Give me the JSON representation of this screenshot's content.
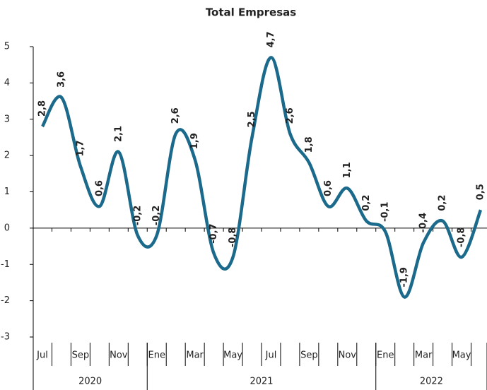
{
  "chart_data": {
    "type": "line",
    "title": "Total Empresas",
    "categories": [
      "Jul",
      null,
      "Sep",
      null,
      "Nov",
      null,
      "Ene",
      null,
      "Mar",
      null,
      "May",
      null,
      "Jul",
      null,
      "Sep",
      null,
      "Nov",
      null,
      "Ene",
      null,
      "Mar",
      null,
      "May",
      null
    ],
    "groups": [
      {
        "label": "2020",
        "span": 6
      },
      {
        "label": "2021",
        "span": 12
      },
      {
        "label": "2022",
        "span": 6
      }
    ],
    "values": [
      2.8,
      3.6,
      1.7,
      0.6,
      2.1,
      -0.2,
      -0.2,
      2.6,
      1.9,
      -0.7,
      -0.8,
      2.5,
      4.7,
      2.6,
      1.8,
      0.6,
      1.1,
      0.2,
      -0.1,
      -1.9,
      -0.4,
      0.2,
      -0.8,
      0.5
    ],
    "value_labels": [
      "2,8",
      "3,6",
      "1,7",
      "0,6",
      "2,1",
      "-0,2",
      "-0,2",
      "2,6",
      "1,9",
      "-0,7",
      "-0,8",
      "2,5",
      "4,7",
      "2,6",
      "1,8",
      "0,6",
      "1,1",
      "0,2",
      "-0,1",
      "-1,9",
      "-0,4",
      "0,2",
      "-0,8",
      "0,5"
    ],
    "color": "#1b6a8c",
    "ylim": [
      -3,
      5
    ],
    "yticks": [
      -3,
      -2,
      -1,
      0,
      1,
      2,
      3,
      4,
      5
    ]
  }
}
